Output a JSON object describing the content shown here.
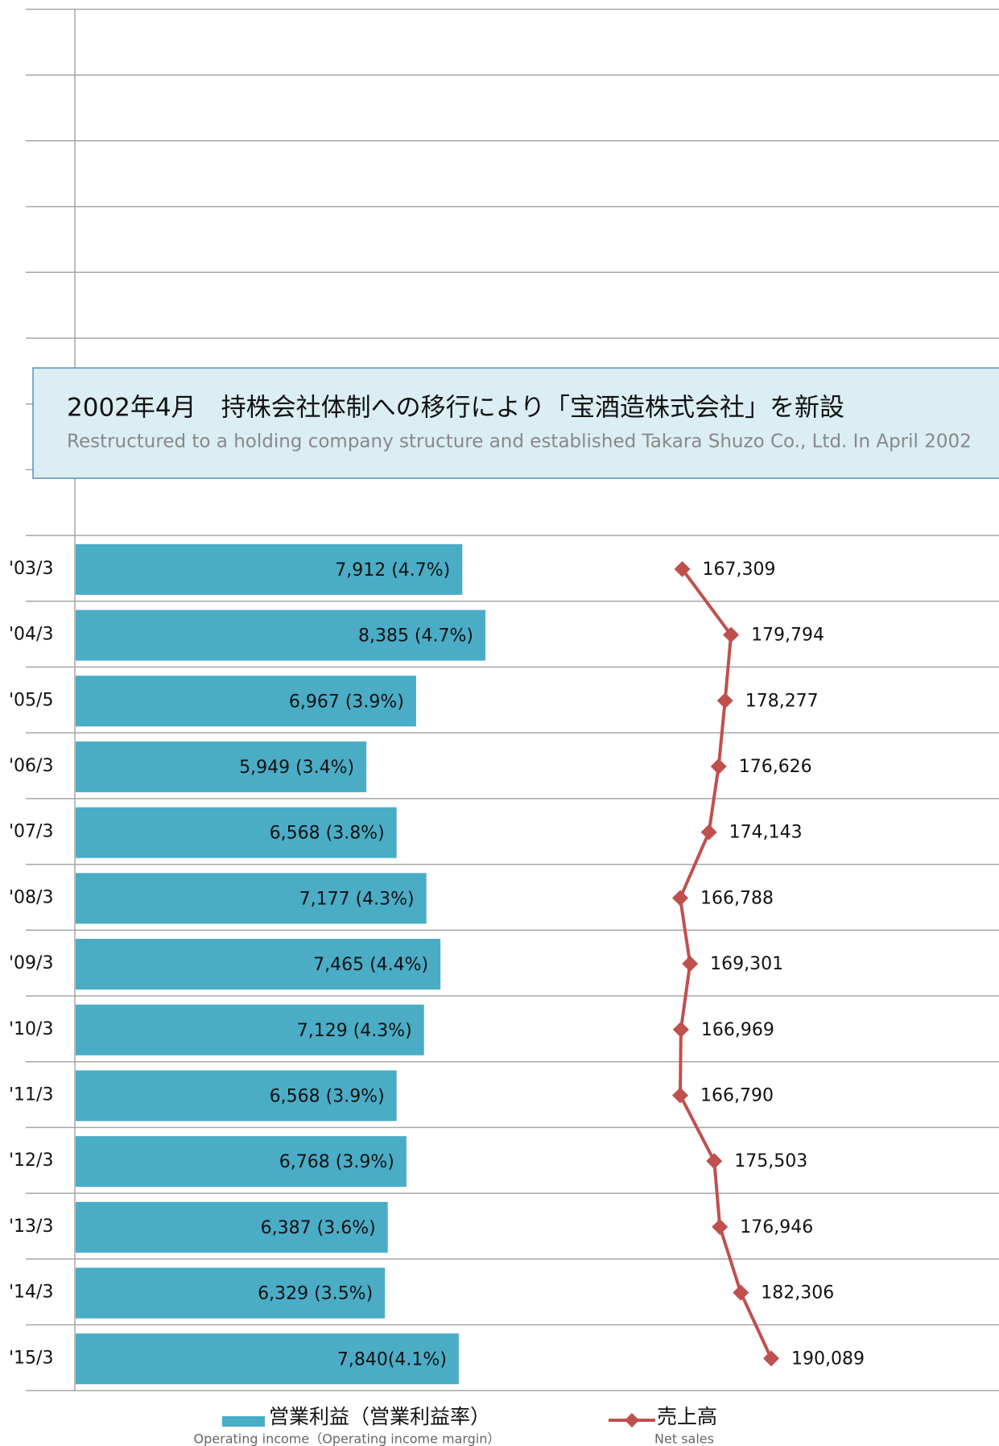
{
  "chart_data": {
    "type": "bar_line",
    "title": "2002年4月　持株会社体制への移行により「宝酒造株式会社」を新設",
    "subtitle": "Restructured to a holding company structure and established Takara Shuzo Co., Ltd. In April 2002",
    "categories": [
      "'03/3",
      "'04/3",
      "'05/5",
      "'06/3",
      "'07/3",
      "'08/3",
      "'09/3",
      "'10/3",
      "'11/3",
      "'12/3",
      "'13/3",
      "'14/3",
      "'15/3"
    ],
    "series": [
      {
        "name": "営業利益（営業利益率）",
        "subname": "Operating income（Operating income margin）",
        "color": "#4bacc6",
        "values": [
          7912,
          8385,
          6967,
          5949,
          6568,
          7177,
          7465,
          7129,
          6568,
          6768,
          6387,
          6329,
          7840
        ],
        "value_labels": [
          "7,912 (4.7%)",
          "8,385 (4.7%)",
          "6,967 (3.9%)",
          "5,949 (3.4%)",
          "6,568 (3.8%)",
          "7,177 (4.3%)",
          "7,465 (4.4%)",
          "7,129 (4.3%)",
          "6,568 (3.9%)",
          "6,768 (3.9%)",
          "6,387 (3.6%)",
          "6,329 (3.5%)",
          "7,840(4.1%)"
        ]
      },
      {
        "name": "売上高",
        "subname": "Net sales",
        "color": "#c0504d",
        "values": [
          167309,
          179794,
          178277,
          176626,
          174143,
          166788,
          169301,
          166969,
          166790,
          175503,
          176946,
          182306,
          190089
        ],
        "value_labels": [
          "167,309",
          "179,794",
          "178,277",
          "176,626",
          "174,143",
          "166,788",
          "169,301",
          "166,969",
          "166,790",
          "175,503",
          "176,946",
          "182,306",
          "190,089"
        ]
      }
    ]
  }
}
